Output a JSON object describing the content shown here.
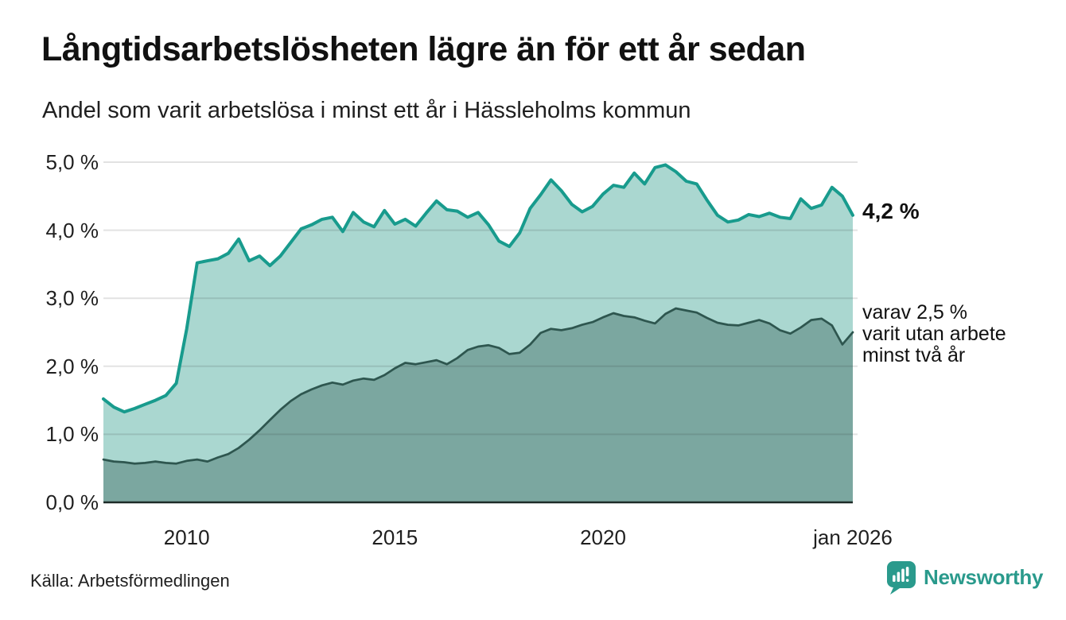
{
  "page": {
    "brand": "Newsworthy"
  },
  "colors": {
    "background": "#ffffff",
    "title_text": "#111111",
    "body_text": "#1f1f1f",
    "grid": "rgba(30,30,30,0.13)",
    "axis_line": "#1d2b28",
    "total_line": "#189b8d",
    "total_fill": "#aad7d0",
    "two_year_line": "#2e564f",
    "two_year_fill": "#7ba7a0",
    "brand_teal": "#2a9a8c"
  },
  "annotations": {
    "total_end_label": "4,2 %",
    "secondary_line1": "varav 2,5 %",
    "secondary_line2": "varit utan arbete",
    "secondary_line3": "minst två år"
  },
  "chart_data": {
    "type": "area",
    "title": "Långtidsarbetslösheten lägre än för ett år sedan",
    "subtitle": "Andel som varit arbetslösa i minst ett år i Hässleholms kommun",
    "source": "Källa: Arbetsförmedlingen",
    "xlabel": "",
    "ylabel": "",
    "xlim": [
      2008,
      2026
    ],
    "ylim": [
      0,
      5.25
    ],
    "grid": "horizontal",
    "legend": "end-of-line labels",
    "x": [
      2008,
      2008.25,
      2008.5,
      2008.75,
      2009,
      2009.25,
      2009.5,
      2009.75,
      2010,
      2010.25,
      2010.5,
      2010.75,
      2011,
      2011.25,
      2011.5,
      2011.75,
      2012,
      2012.25,
      2012.5,
      2012.75,
      2013,
      2013.25,
      2013.5,
      2013.75,
      2014,
      2014.25,
      2014.5,
      2014.75,
      2015,
      2015.25,
      2015.5,
      2015.75,
      2016,
      2016.25,
      2016.5,
      2016.75,
      2017,
      2017.25,
      2017.5,
      2017.75,
      2018,
      2018.25,
      2018.5,
      2018.75,
      2019,
      2019.25,
      2019.5,
      2019.75,
      2020,
      2020.25,
      2020.5,
      2020.75,
      2021,
      2021.25,
      2021.5,
      2021.75,
      2022,
      2022.25,
      2022.5,
      2022.75,
      2023,
      2023.25,
      2023.5,
      2023.75,
      2024,
      2024.25,
      2024.5,
      2024.75,
      2025,
      2025.25,
      2025.5,
      2025.75,
      2026
    ],
    "series": [
      {
        "name": "Andel arbetslösa minst ett år",
        "end_value_label": "4,2 %",
        "line_color": "#189b8d",
        "fill_color": "#aad7d0",
        "line_width": 4,
        "values": [
          1.52,
          1.4,
          1.33,
          1.38,
          1.44,
          1.5,
          1.57,
          1.75,
          2.55,
          3.52,
          3.55,
          3.58,
          3.66,
          3.87,
          3.55,
          3.62,
          3.48,
          3.62,
          3.82,
          4.02,
          4.08,
          4.16,
          4.19,
          3.98,
          4.26,
          4.12,
          4.05,
          4.29,
          4.09,
          4.16,
          4.06,
          4.25,
          4.43,
          4.3,
          4.28,
          4.19,
          4.26,
          4.08,
          3.84,
          3.76,
          3.96,
          4.32,
          4.52,
          4.74,
          4.58,
          4.38,
          4.27,
          4.35,
          4.53,
          4.66,
          4.63,
          4.84,
          4.68,
          4.92,
          4.96,
          4.86,
          4.72,
          4.68,
          4.44,
          4.22,
          4.12,
          4.15,
          4.23,
          4.2,
          4.25,
          4.19,
          4.17,
          4.46,
          4.32,
          4.37,
          4.63,
          4.5,
          4.22
        ]
      },
      {
        "name": "Varav utan arbete minst två år",
        "end_value_label": "varav 2,5 % varit utan arbete minst två år",
        "line_color": "#2e564f",
        "fill_color": "#7ba7a0",
        "line_width": 2.75,
        "values": [
          0.63,
          0.6,
          0.59,
          0.57,
          0.58,
          0.6,
          0.58,
          0.57,
          0.61,
          0.63,
          0.6,
          0.66,
          0.71,
          0.8,
          0.92,
          1.06,
          1.21,
          1.36,
          1.49,
          1.59,
          1.66,
          1.72,
          1.76,
          1.73,
          1.79,
          1.82,
          1.8,
          1.87,
          1.97,
          2.05,
          2.03,
          2.06,
          2.09,
          2.03,
          2.12,
          2.24,
          2.29,
          2.31,
          2.27,
          2.18,
          2.2,
          2.32,
          2.49,
          2.55,
          2.53,
          2.56,
          2.61,
          2.65,
          2.72,
          2.78,
          2.74,
          2.72,
          2.67,
          2.63,
          2.77,
          2.85,
          2.82,
          2.79,
          2.71,
          2.64,
          2.61,
          2.6,
          2.64,
          2.68,
          2.63,
          2.53,
          2.48,
          2.57,
          2.68,
          2.7,
          2.6,
          2.32,
          2.5
        ]
      }
    ],
    "yticks": [
      {
        "v": 0,
        "label": "0,0 %"
      },
      {
        "v": 1,
        "label": "1,0 %"
      },
      {
        "v": 2,
        "label": "2,0 %"
      },
      {
        "v": 3,
        "label": "3,0 %"
      },
      {
        "v": 4,
        "label": "4,0 %"
      },
      {
        "v": 5,
        "label": "5,0 %"
      }
    ],
    "xticks": [
      {
        "v": 2010,
        "label": "2010"
      },
      {
        "v": 2015,
        "label": "2015"
      },
      {
        "v": 2020,
        "label": "2020"
      },
      {
        "v": 2026,
        "label": "jan 2026"
      }
    ]
  }
}
